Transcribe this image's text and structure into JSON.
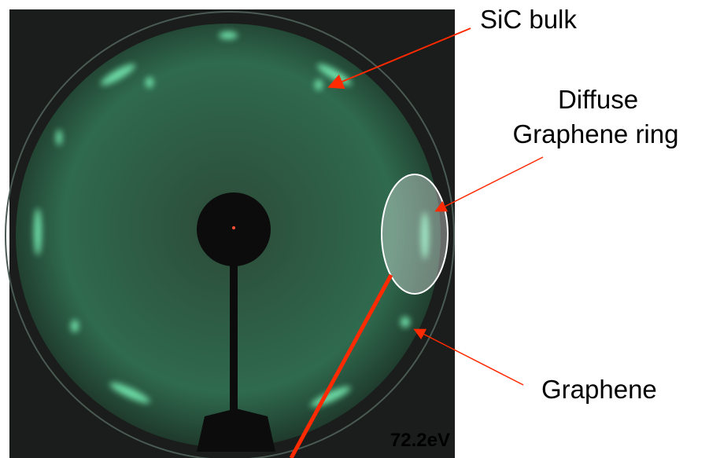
{
  "annotations": {
    "sic_bulk": "SiC bulk",
    "diffuse_ring": [
      "Diffuse",
      "Graphene ring"
    ],
    "graphene": "Graphene"
  },
  "energy_label": "72.2eV"
}
